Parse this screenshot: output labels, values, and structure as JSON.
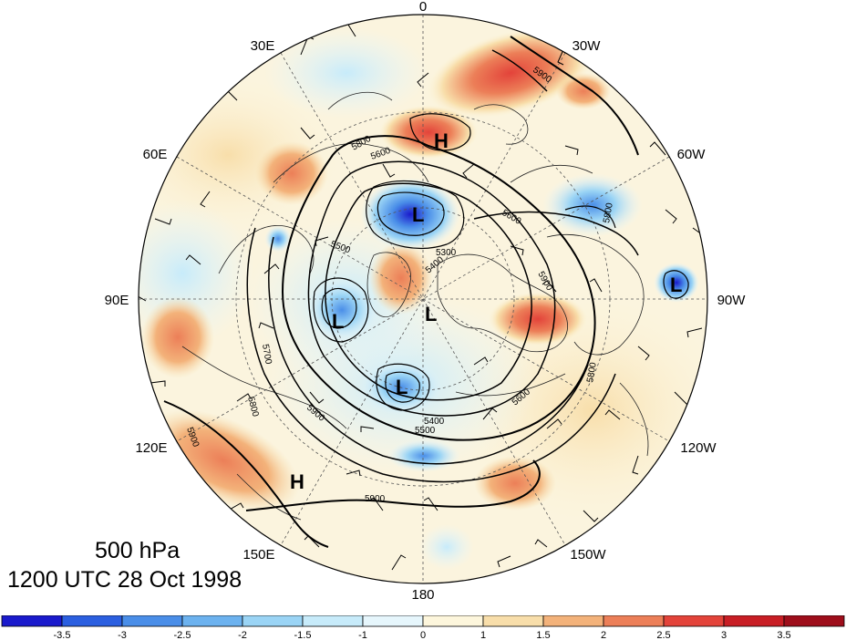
{
  "title": {
    "level": "500 hPa",
    "time": "1200 UTC 28 Oct 1998"
  },
  "longitude_labels": [
    "0",
    "30W",
    "60W",
    "90W",
    "120W",
    "150W",
    "180",
    "150E",
    "120E",
    "90E",
    "60E",
    "30E"
  ],
  "contour_labels": [
    "5900",
    "5600",
    "5800",
    "5300",
    "5500",
    "5400",
    "5700",
    "5600",
    "5500",
    "5900",
    "5800",
    "5900",
    "5800",
    "5900",
    "5400",
    "5600",
    "5800",
    "5900"
  ],
  "centers": [
    {
      "type": "H",
      "label": "H"
    },
    {
      "type": "L",
      "label": "L"
    },
    {
      "type": "L",
      "label": "L"
    },
    {
      "type": "L",
      "label": "L"
    },
    {
      "type": "L",
      "label": "L"
    },
    {
      "type": "L",
      "label": "L"
    },
    {
      "type": "H",
      "label": "H"
    }
  ],
  "colorbar": {
    "labels": [
      "-3.5",
      "-3",
      "-2.5",
      "-2",
      "-1.5",
      "-1",
      "0",
      "1",
      "1.5",
      "2",
      "2.5",
      "3",
      "3.5"
    ],
    "colors": [
      "#1a1acc",
      "#2b5fe0",
      "#4a8ee8",
      "#6cb2ef",
      "#9ad4f5",
      "#c7ebfa",
      "#e6f6fc",
      "#fdf6dc",
      "#f8deaa",
      "#f3b27a",
      "#ec7f58",
      "#e3433a",
      "#c81e25",
      "#9e0e1b"
    ]
  },
  "palette": {
    "ocean_bg": "#fbf4de",
    "contour": "#000000",
    "coast": "#222222"
  }
}
